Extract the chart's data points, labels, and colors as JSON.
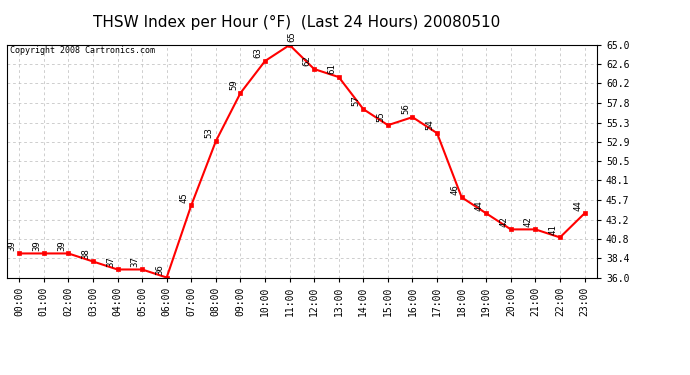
{
  "title": "THSW Index per Hour (°F)  (Last 24 Hours) 20080510",
  "copyright_text": "Copyright 2008 Cartronics.com",
  "hours": [
    0,
    1,
    2,
    3,
    4,
    5,
    6,
    7,
    8,
    9,
    10,
    11,
    12,
    13,
    14,
    15,
    16,
    17,
    18,
    19,
    20,
    21,
    22,
    23
  ],
  "values": [
    39,
    39,
    39,
    38,
    37,
    37,
    36,
    45,
    53,
    59,
    63,
    65,
    62,
    61,
    57,
    55,
    56,
    54,
    46,
    44,
    42,
    42,
    41,
    44
  ],
  "hour_labels": [
    "00:00",
    "01:00",
    "02:00",
    "03:00",
    "04:00",
    "05:00",
    "06:00",
    "07:00",
    "08:00",
    "09:00",
    "10:00",
    "11:00",
    "12:00",
    "13:00",
    "14:00",
    "15:00",
    "16:00",
    "17:00",
    "18:00",
    "19:00",
    "20:00",
    "21:00",
    "22:00",
    "23:00"
  ],
  "ylim": [
    36.0,
    65.0
  ],
  "yticks": [
    36.0,
    38.4,
    40.8,
    43.2,
    45.7,
    48.1,
    50.5,
    52.9,
    55.3,
    57.8,
    60.2,
    62.6,
    65.0
  ],
  "line_color": "#ff0000",
  "marker_color": "#ff0000",
  "background_color": "#ffffff",
  "plot_bg_color": "#ffffff",
  "grid_color": "#bbbbbb",
  "title_fontsize": 11,
  "tick_fontsize": 7,
  "value_label_fontsize": 6.5,
  "copyright_fontsize": 6
}
